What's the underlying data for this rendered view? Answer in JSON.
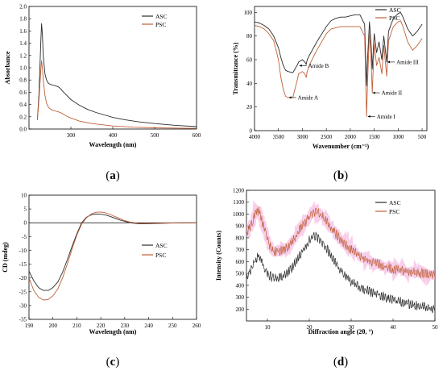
{
  "figure": {
    "panel_labels": [
      {
        "open": "(",
        "letter": "a",
        "close": ")"
      },
      {
        "open": "(",
        "letter": "b",
        "close": ")"
      },
      {
        "open": "(",
        "letter": "c",
        "close": ")"
      },
      {
        "open": "(",
        "letter": "d",
        "close": ")"
      }
    ]
  },
  "colors": {
    "ASC": "#2b2b2b",
    "PSC": "#c0603a",
    "PSC_band": "#f2a7d8"
  },
  "chart_data": [
    {
      "id": "a",
      "type": "line",
      "xlabel": "Wavelength (nm)",
      "ylabel": "Absorbance",
      "xlim": [
        200,
        600
      ],
      "ylim": [
        0,
        2.0
      ],
      "xticks": [
        300,
        400,
        500,
        600
      ],
      "yticks": [
        0.0,
        0.2,
        0.4,
        0.6,
        0.8,
        1.0,
        1.2,
        1.4,
        1.6,
        1.8,
        2.0
      ],
      "legend": "top-right",
      "series": [
        {
          "name": "ASC",
          "x": [
            220,
            224,
            228,
            230,
            232,
            234,
            238,
            242,
            246,
            250,
            255,
            260,
            265,
            270,
            275,
            280,
            290,
            300,
            320,
            340,
            360,
            380,
            400,
            430,
            460,
            500,
            550,
            600
          ],
          "y": [
            0.15,
            0.6,
            1.4,
            1.72,
            1.55,
            1.2,
            0.9,
            0.8,
            0.75,
            0.73,
            0.72,
            0.71,
            0.7,
            0.69,
            0.66,
            0.62,
            0.55,
            0.48,
            0.39,
            0.32,
            0.27,
            0.23,
            0.19,
            0.15,
            0.12,
            0.09,
            0.06,
            0.04
          ]
        },
        {
          "name": "PSC",
          "x": [
            220,
            224,
            228,
            230,
            232,
            234,
            238,
            242,
            246,
            250,
            255,
            260,
            265,
            270,
            275,
            280,
            290,
            300,
            320,
            350,
            400,
            450,
            500,
            600
          ],
          "y": [
            0.15,
            0.5,
            0.95,
            1.12,
            1.0,
            0.8,
            0.55,
            0.42,
            0.36,
            0.33,
            0.31,
            0.3,
            0.29,
            0.28,
            0.27,
            0.25,
            0.21,
            0.18,
            0.13,
            0.09,
            0.05,
            0.03,
            0.02,
            0.01
          ]
        }
      ]
    },
    {
      "id": "b",
      "type": "line",
      "xlabel": "Wavenumber (cm⁻¹)",
      "ylabel": "Transmittance (%)",
      "xlim": [
        4000,
        400
      ],
      "ylim": [
        0,
        105
      ],
      "xticks": [
        4000,
        3500,
        3000,
        2500,
        2000,
        1500,
        1000,
        500
      ],
      "yticks": [
        0,
        20,
        40,
        60,
        80,
        100
      ],
      "legend": "top-right",
      "annotations": [
        {
          "text": "Amide A",
          "x": 3300,
          "y": 28
        },
        {
          "text": "Amide B",
          "x": 3080,
          "y": 55
        },
        {
          "text": "Amide I",
          "x": 1650,
          "y": 12
        },
        {
          "text": "Amide II",
          "x": 1550,
          "y": 32
        },
        {
          "text": "Amide III",
          "x": 1240,
          "y": 58
        }
      ],
      "series": [
        {
          "name": "ASC",
          "x": [
            4000,
            3900,
            3800,
            3700,
            3600,
            3500,
            3450,
            3400,
            3350,
            3300,
            3200,
            3100,
            3080,
            3000,
            2950,
            2920,
            2900,
            2850,
            2700,
            2500,
            2400,
            2300,
            2200,
            2100,
            2000,
            1900,
            1800,
            1700,
            1660,
            1640,
            1600,
            1560,
            1540,
            1500,
            1450,
            1400,
            1340,
            1300,
            1240,
            1200,
            1100,
            1000,
            950,
            900,
            800,
            700,
            600,
            500
          ],
          "y": [
            92,
            91,
            89,
            86,
            80,
            70,
            62,
            55,
            51,
            50,
            49,
            56,
            58,
            60,
            58,
            56,
            60,
            64,
            75,
            88,
            93,
            95,
            96,
            96,
            97,
            98,
            98,
            90,
            38,
            60,
            92,
            70,
            52,
            82,
            66,
            75,
            60,
            80,
            58,
            84,
            95,
            99,
            100,
            96,
            86,
            80,
            84,
            90
          ]
        },
        {
          "name": "PSC",
          "x": [
            4000,
            3900,
            3800,
            3700,
            3600,
            3500,
            3450,
            3400,
            3350,
            3300,
            3200,
            3100,
            3080,
            3000,
            2950,
            2920,
            2900,
            2850,
            2700,
            2500,
            2400,
            2300,
            2200,
            2100,
            2000,
            1900,
            1800,
            1700,
            1660,
            1640,
            1600,
            1560,
            1540,
            1500,
            1450,
            1400,
            1340,
            1300,
            1240,
            1200,
            1100,
            1000,
            950,
            900,
            800,
            700,
            600,
            500
          ],
          "y": [
            89,
            88,
            86,
            82,
            76,
            60,
            45,
            35,
            29,
            28,
            28,
            44,
            48,
            50,
            48,
            45,
            50,
            56,
            68,
            82,
            86,
            87,
            88,
            88,
            88,
            88,
            88,
            80,
            12,
            40,
            85,
            55,
            32,
            74,
            55,
            62,
            48,
            72,
            46,
            76,
            88,
            92,
            93,
            88,
            75,
            68,
            72,
            78
          ]
        }
      ]
    },
    {
      "id": "c",
      "type": "line",
      "xlabel": "Wavelength (nm)",
      "ylabel": "CD (mdeg)",
      "xlim": [
        190,
        260
      ],
      "ylim": [
        -35,
        10
      ],
      "xticks": [
        190,
        200,
        210,
        220,
        230,
        240,
        250,
        260
      ],
      "yticks": [
        -35,
        -30,
        -25,
        -20,
        -15,
        -10,
        -5,
        0,
        5,
        10
      ],
      "legend": "right",
      "series": [
        {
          "name": "ASC",
          "x": [
            190,
            192,
            194,
            196,
            198,
            200,
            202,
            204,
            206,
            208,
            210,
            212,
            214,
            216,
            218,
            220,
            222,
            224,
            226,
            228,
            230,
            232,
            234,
            236,
            238,
            240,
            245,
            250,
            255,
            260
          ],
          "y": [
            -17.5,
            -21,
            -23.5,
            -24.5,
            -24.5,
            -23.5,
            -21.5,
            -18,
            -13.5,
            -8.5,
            -4,
            0,
            2,
            2.9,
            3.2,
            3.1,
            2.8,
            2.3,
            1.6,
            1,
            0.5,
            0.1,
            -0.2,
            -0.35,
            -0.4,
            -0.35,
            -0.2,
            -0.1,
            -0.05,
            0
          ]
        },
        {
          "name": "PSC",
          "x": [
            190,
            192,
            194,
            196,
            198,
            200,
            202,
            204,
            206,
            208,
            210,
            212,
            214,
            216,
            218,
            220,
            222,
            224,
            226,
            228,
            230,
            232,
            234,
            236,
            238,
            240,
            245,
            250,
            255,
            260
          ],
          "y": [
            -20,
            -24.5,
            -27,
            -28,
            -27.8,
            -26.5,
            -24,
            -20,
            -15,
            -9.5,
            -4.5,
            -0.5,
            1.8,
            3.2,
            3.8,
            3.9,
            3.6,
            3,
            2.2,
            1.5,
            0.8,
            0.3,
            0,
            -0.2,
            -0.3,
            -0.3,
            -0.15,
            -0.05,
            0,
            0
          ]
        }
      ]
    },
    {
      "id": "d",
      "type": "line",
      "xlabel": "Diffraction angle (2θ, °)",
      "ylabel": "Intensity (Counts)",
      "xlim": [
        5,
        50
      ],
      "ylim": [
        100,
        1200
      ],
      "xticks": [
        10,
        20,
        30,
        40,
        50
      ],
      "yticks": [
        200,
        300,
        400,
        500,
        600,
        700,
        800,
        900,
        1000,
        1100,
        1200
      ],
      "legend": "top-right",
      "series": [
        {
          "name": "ASC",
          "x": [
            5,
            6,
            7,
            7.5,
            8,
            8.5,
            9,
            10,
            11,
            12,
            14,
            16,
            18,
            20,
            21,
            22,
            23,
            24,
            26,
            28,
            30,
            32,
            35,
            38,
            40,
            42,
            45,
            48,
            50
          ],
          "y": [
            470,
            520,
            600,
            640,
            650,
            610,
            560,
            500,
            470,
            460,
            480,
            550,
            670,
            780,
            810,
            805,
            770,
            720,
            600,
            500,
            430,
            380,
            340,
            300,
            280,
            260,
            235,
            215,
            200
          ]
        },
        {
          "name": "PSC",
          "x": [
            5,
            6,
            7,
            7.5,
            8,
            8.5,
            9,
            10,
            11,
            12,
            14,
            16,
            18,
            20,
            21,
            22,
            23,
            24,
            26,
            28,
            30,
            32,
            35,
            38,
            40,
            42,
            45,
            48,
            50
          ],
          "y": [
            830,
            900,
            990,
            1020,
            1030,
            980,
            900,
            780,
            700,
            680,
            700,
            770,
            880,
            980,
            1010,
            1015,
            990,
            940,
            850,
            760,
            700,
            650,
            600,
            560,
            540,
            525,
            510,
            495,
            480
          ]
        }
      ]
    }
  ]
}
